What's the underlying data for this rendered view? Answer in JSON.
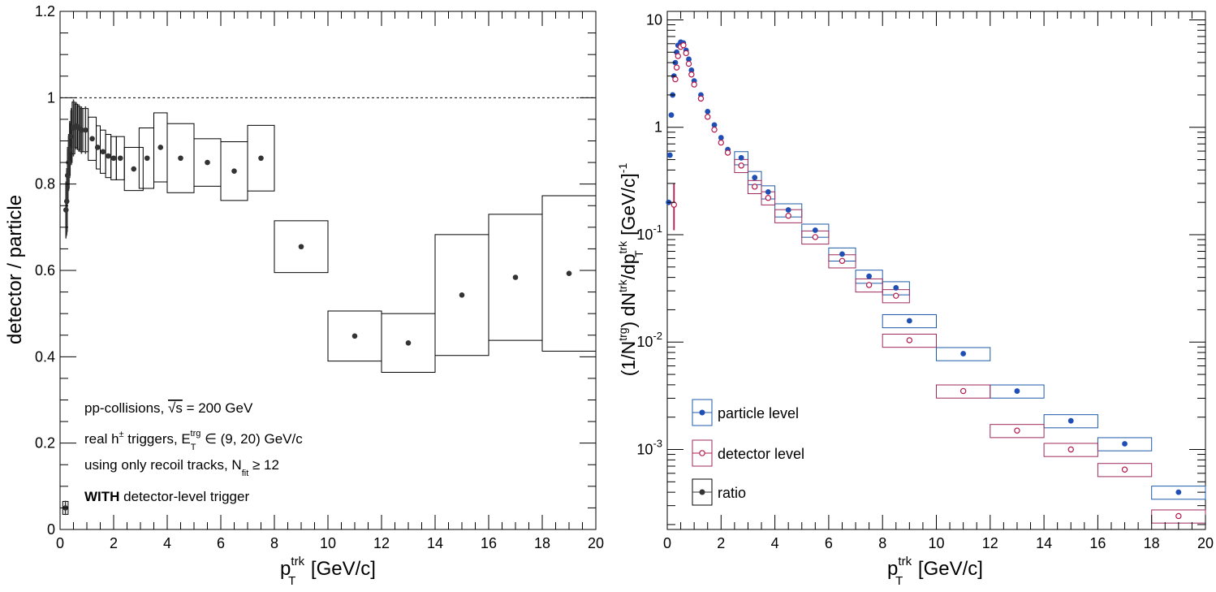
{
  "colors": {
    "axis": "#000000",
    "ratio_marker": "#333333",
    "particle": "#1f4fb5",
    "particle_box": "#1d5aa8",
    "detector": "#b5174a",
    "detector_box": "#9e2a5c"
  },
  "left_panel": {
    "ylabel": "detector / particle",
    "xlabel": {
      "main": "p",
      "sup": "trk",
      "sub": "T",
      "unit": " [GeV/c]"
    },
    "annotations": {
      "line1_pre": "pp-collisions, ",
      "line1_sqrt": "√s",
      "line1_post": " = 200 GeV",
      "line2_pre": "real h",
      "line2_sup": "±",
      "line2_mid": " triggers, E",
      "line2_sub": "T",
      "line2_sup2": "trg",
      "line2_post": " ∈ (9, 20) GeV/c",
      "line3_pre": "using only recoil tracks, N",
      "line3_sub": "fit",
      "line3_post": " ≥ 12",
      "line4_bold": "WITH",
      "line4_post": " detector-level trigger"
    },
    "x_ticks": [
      "0",
      "2",
      "4",
      "6",
      "8",
      "10",
      "12",
      "14",
      "16",
      "18",
      "20"
    ],
    "y_ticks": [
      "0",
      "0.2",
      "0.4",
      "0.6",
      "0.8",
      "1",
      "1.2"
    ]
  },
  "right_panel": {
    "ylabel": {
      "a": "(1/N",
      "a_sup": "trg",
      "b": ") dN",
      "b_sup": "trk",
      "c": "/dp",
      "c_sup": "trk",
      "c_sub": "T",
      "d": " [GeV/c]",
      "d_sup": "-1"
    },
    "xlabel": {
      "main": "p",
      "sup": "trk",
      "sub": "T",
      "unit": " [GeV/c]"
    },
    "x_ticks": [
      "0",
      "2",
      "4",
      "6",
      "8",
      "10",
      "12",
      "14",
      "16",
      "18",
      "20"
    ],
    "y_ticks": [
      {
        "base": "10",
        "exp": "-3",
        "value": 0.001
      },
      {
        "base": "10",
        "exp": "-2",
        "value": 0.01
      },
      {
        "base": "10",
        "exp": "-1",
        "value": 0.1
      },
      {
        "base": "1",
        "exp": "",
        "value": 1
      },
      {
        "base": "10",
        "exp": "",
        "value": 10
      }
    ],
    "legend": [
      "particle level",
      "detector level",
      "ratio"
    ]
  },
  "chart_data": [
    {
      "type": "scatter",
      "title": "",
      "xlabel": "p_T^trk [GeV/c]",
      "ylabel": "detector / particle",
      "xlim": [
        0,
        20
      ],
      "ylim": [
        0,
        1.2
      ],
      "grid": false,
      "reference_line": 1,
      "series": [
        {
          "name": "ratio",
          "points": [
            {
              "x": 0.2,
              "y": 0.05,
              "ey": 0.015,
              "xlo": 0.1,
              "xhi": 0.3
            },
            {
              "x": 0.22,
              "y": 0.74,
              "ey": 0.06,
              "xlo": 0.21,
              "xhi": 0.23
            },
            {
              "x": 0.25,
              "y": 0.76,
              "ey": 0.07,
              "xlo": 0.24,
              "xhi": 0.26
            },
            {
              "x": 0.28,
              "y": 0.82,
              "ey": 0.06,
              "xlo": 0.27,
              "xhi": 0.29
            },
            {
              "x": 0.32,
              "y": 0.85,
              "ey": 0.06,
              "xlo": 0.31,
              "xhi": 0.33
            },
            {
              "x": 0.36,
              "y": 0.88,
              "ey": 0.06,
              "xlo": 0.35,
              "xhi": 0.37
            },
            {
              "x": 0.42,
              "y": 0.91,
              "ey": 0.06,
              "xlo": 0.4,
              "xhi": 0.45
            },
            {
              "x": 0.5,
              "y": 0.93,
              "ey": 0.06,
              "xlo": 0.45,
              "xhi": 0.55
            },
            {
              "x": 0.6,
              "y": 0.935,
              "ey": 0.05,
              "xlo": 0.55,
              "xhi": 0.65
            },
            {
              "x": 0.7,
              "y": 0.93,
              "ey": 0.05,
              "xlo": 0.65,
              "xhi": 0.75
            },
            {
              "x": 0.8,
              "y": 0.925,
              "ey": 0.05,
              "xlo": 0.75,
              "xhi": 0.85
            },
            {
              "x": 0.95,
              "y": 0.925,
              "ey": 0.05,
              "xlo": 0.85,
              "xhi": 1.05
            },
            {
              "x": 1.2,
              "y": 0.905,
              "ey": 0.05,
              "xlo": 1.05,
              "xhi": 1.35
            },
            {
              "x": 1.4,
              "y": 0.885,
              "ey": 0.05,
              "xlo": 1.35,
              "xhi": 1.5
            },
            {
              "x": 1.6,
              "y": 0.875,
              "ey": 0.05,
              "xlo": 1.5,
              "xhi": 1.7
            },
            {
              "x": 1.8,
              "y": 0.865,
              "ey": 0.05,
              "xlo": 1.7,
              "xhi": 1.9
            },
            {
              "x": 2.0,
              "y": 0.86,
              "ey": 0.05,
              "xlo": 1.9,
              "xhi": 2.1
            },
            {
              "x": 2.25,
              "y": 0.86,
              "ey": 0.05,
              "xlo": 2.1,
              "xhi": 2.4
            },
            {
              "x": 2.75,
              "y": 0.835,
              "ey": 0.05,
              "xlo": 2.4,
              "xhi": 3.1
            },
            {
              "x": 3.25,
              "y": 0.86,
              "ey": 0.07,
              "xlo": 2.95,
              "xhi": 3.5
            },
            {
              "x": 3.75,
              "y": 0.885,
              "ey": 0.08,
              "xlo": 3.5,
              "xhi": 4.0
            },
            {
              "x": 4.5,
              "y": 0.86,
              "ey": 0.08,
              "xlo": 4.0,
              "xhi": 5.0
            },
            {
              "x": 5.5,
              "y": 0.85,
              "ey": 0.055,
              "xlo": 5.0,
              "xhi": 6.0
            },
            {
              "x": 6.5,
              "y": 0.83,
              "ey": 0.068,
              "xlo": 6.0,
              "xhi": 7.0
            },
            {
              "x": 7.5,
              "y": 0.86,
              "ey": 0.076,
              "xlo": 7.0,
              "xhi": 8.0
            },
            {
              "x": 9.0,
              "y": 0.655,
              "ey": 0.06,
              "xlo": 8.0,
              "xhi": 10.0
            },
            {
              "x": 11.0,
              "y": 0.448,
              "ey": 0.058,
              "xlo": 10.0,
              "xhi": 12.0
            },
            {
              "x": 13.0,
              "y": 0.432,
              "ey": 0.068,
              "xlo": 12.0,
              "xhi": 14.0
            },
            {
              "x": 15.0,
              "y": 0.543,
              "ey": 0.14,
              "xlo": 14.0,
              "xhi": 16.0
            },
            {
              "x": 17.0,
              "y": 0.584,
              "ey": 0.146,
              "xlo": 16.0,
              "xhi": 18.0
            },
            {
              "x": 19.0,
              "y": 0.593,
              "ey": 0.18,
              "xlo": 18.0,
              "xhi": 20.0
            }
          ]
        }
      ]
    },
    {
      "type": "scatter",
      "title": "",
      "xlabel": "p_T^trk [GeV/c]",
      "ylabel": "(1/N^trg) dN^trk/dp_T^trk [GeV/c]^-1",
      "xlim": [
        0,
        20
      ],
      "ylim": [
        0.00018,
        12
      ],
      "yscale": "log",
      "grid": false,
      "legend_position": "bottom-left",
      "series": [
        {
          "name": "particle level",
          "points": [
            {
              "x": 0.05,
              "y": 0.2
            },
            {
              "x": 0.1,
              "y": 0.55
            },
            {
              "x": 0.15,
              "y": 1.3
            },
            {
              "x": 0.2,
              "y": 2.0
            },
            {
              "x": 0.25,
              "y": 3.0
            },
            {
              "x": 0.3,
              "y": 4.0
            },
            {
              "x": 0.35,
              "y": 5.0
            },
            {
              "x": 0.4,
              "y": 5.8
            },
            {
              "x": 0.5,
              "y": 6.2
            },
            {
              "x": 0.6,
              "y": 6.1
            },
            {
              "x": 0.7,
              "y": 5.2
            },
            {
              "x": 0.8,
              "y": 4.3
            },
            {
              "x": 0.9,
              "y": 3.4
            },
            {
              "x": 1.0,
              "y": 2.7
            },
            {
              "x": 1.25,
              "y": 2.0
            },
            {
              "x": 1.5,
              "y": 1.4
            },
            {
              "x": 1.75,
              "y": 1.05
            },
            {
              "x": 2.0,
              "y": 0.8
            },
            {
              "x": 2.25,
              "y": 0.62
            },
            {
              "x": 2.75,
              "y": 0.52,
              "xlo": 2.5,
              "xhi": 3.0
            },
            {
              "x": 3.25,
              "y": 0.34,
              "xlo": 3.0,
              "xhi": 3.5
            },
            {
              "x": 3.75,
              "y": 0.25,
              "xlo": 3.5,
              "xhi": 4.0
            },
            {
              "x": 4.5,
              "y": 0.17,
              "xlo": 4.0,
              "xhi": 5.0
            },
            {
              "x": 5.5,
              "y": 0.11,
              "xlo": 5.0,
              "xhi": 6.0
            },
            {
              "x": 6.5,
              "y": 0.066,
              "xlo": 6.0,
              "xhi": 7.0
            },
            {
              "x": 7.5,
              "y": 0.041,
              "xlo": 7.0,
              "xhi": 8.0
            },
            {
              "x": 8.5,
              "y": 0.032,
              "xlo": 8.0,
              "xhi": 9.0
            },
            {
              "x": 9.0,
              "y": 0.0158,
              "xlo": 8.0,
              "xhi": 10.0
            },
            {
              "x": 11.0,
              "y": 0.0078,
              "xlo": 10.0,
              "xhi": 12.0
            },
            {
              "x": 13.0,
              "y": 0.0035,
              "xlo": 12.0,
              "xhi": 14.0
            },
            {
              "x": 15.0,
              "y": 0.00185,
              "xlo": 14.0,
              "xhi": 16.0
            },
            {
              "x": 17.0,
              "y": 0.00113,
              "xlo": 16.0,
              "xhi": 18.0
            },
            {
              "x": 19.0,
              "y": 0.0004,
              "xlo": 18.0,
              "xhi": 20.0
            }
          ]
        },
        {
          "name": "detector level",
          "points": [
            {
              "x": 0.25,
              "y": 0.19
            },
            {
              "x": 0.3,
              "y": 2.8
            },
            {
              "x": 0.35,
              "y": 3.6
            },
            {
              "x": 0.4,
              "y": 4.6
            },
            {
              "x": 0.5,
              "y": 5.6
            },
            {
              "x": 0.6,
              "y": 5.8
            },
            {
              "x": 0.7,
              "y": 4.9
            },
            {
              "x": 0.8,
              "y": 3.9
            },
            {
              "x": 0.9,
              "y": 3.1
            },
            {
              "x": 1.0,
              "y": 2.5
            },
            {
              "x": 1.25,
              "y": 1.85
            },
            {
              "x": 1.5,
              "y": 1.25
            },
            {
              "x": 1.75,
              "y": 0.95
            },
            {
              "x": 2.0,
              "y": 0.72
            },
            {
              "x": 2.25,
              "y": 0.58
            },
            {
              "x": 2.75,
              "y": 0.44,
              "xlo": 2.5,
              "xhi": 3.0
            },
            {
              "x": 3.25,
              "y": 0.28,
              "xlo": 3.0,
              "xhi": 3.5
            },
            {
              "x": 3.75,
              "y": 0.22,
              "xlo": 3.5,
              "xhi": 4.0
            },
            {
              "x": 4.5,
              "y": 0.15,
              "xlo": 4.0,
              "xhi": 5.0
            },
            {
              "x": 5.5,
              "y": 0.095,
              "xlo": 5.0,
              "xhi": 6.0
            },
            {
              "x": 6.5,
              "y": 0.057,
              "xlo": 6.0,
              "xhi": 7.0
            },
            {
              "x": 7.5,
              "y": 0.034,
              "xlo": 7.0,
              "xhi": 8.0
            },
            {
              "x": 8.5,
              "y": 0.027,
              "xlo": 8.0,
              "xhi": 9.0
            },
            {
              "x": 9.0,
              "y": 0.0104,
              "xlo": 8.0,
              "xhi": 10.0
            },
            {
              "x": 11.0,
              "y": 0.0035,
              "xlo": 10.0,
              "xhi": 12.0
            },
            {
              "x": 13.0,
              "y": 0.0015,
              "xlo": 12.0,
              "xhi": 14.0
            },
            {
              "x": 15.0,
              "y": 0.001,
              "xlo": 14.0,
              "xhi": 16.0
            },
            {
              "x": 17.0,
              "y": 0.00065,
              "xlo": 16.0,
              "xhi": 18.0
            },
            {
              "x": 19.0,
              "y": 0.00024,
              "xlo": 18.0,
              "xhi": 20.0
            }
          ]
        }
      ]
    }
  ]
}
